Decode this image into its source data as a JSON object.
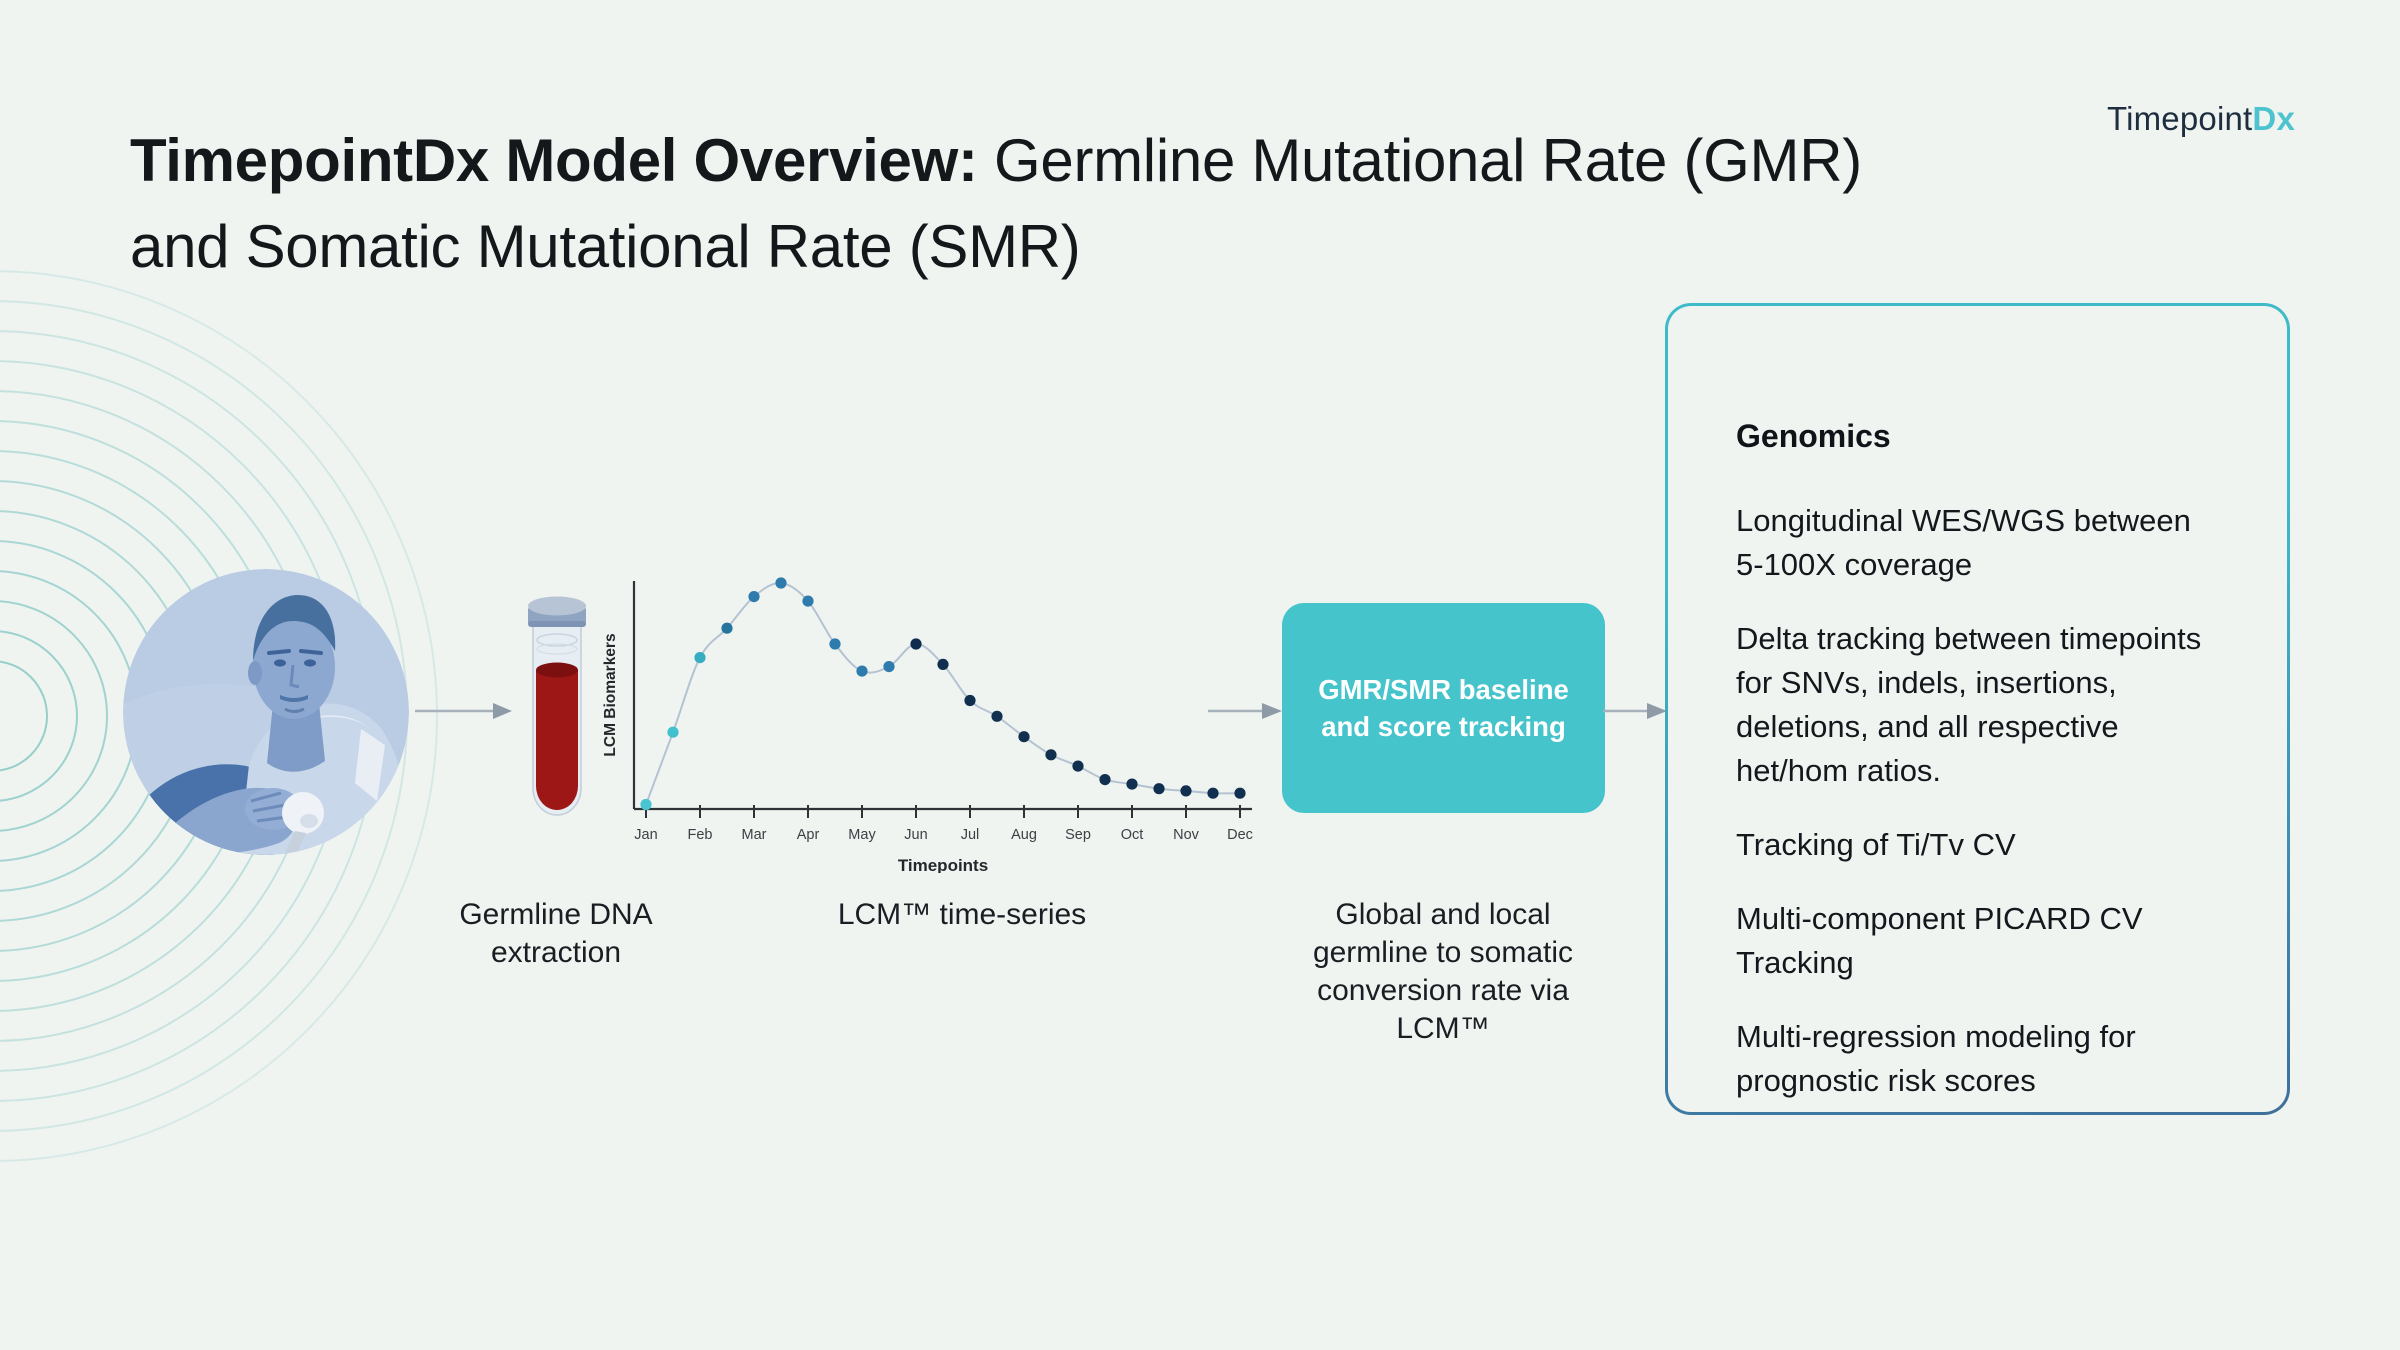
{
  "slide": {
    "background": "#eff4f1"
  },
  "logo": {
    "prefix": "Timepoint",
    "suffix": "Dx",
    "prefix_color": "#1e2e3e",
    "suffix_color": "#4cc3ce"
  },
  "title": {
    "bold": "TimepointDx Model Overview:",
    "rest": " Germline Mutational Rate (GMR) and Somatic Mutational Rate (SMR)",
    "color": "#15181b"
  },
  "captions": {
    "extraction": {
      "text": "Germline DNA extraction",
      "lines": [
        "Germline DNA",
        "extraction"
      ]
    },
    "timeseries": {
      "text": "LCM™ time-series",
      "lines": [
        "LCM™ time-series"
      ]
    },
    "conversion": {
      "text": "Global and local germline to somatic conversion rate via LCM™",
      "lines": [
        "Global and local",
        "germline to somatic",
        "conversion rate via",
        "LCM™"
      ]
    }
  },
  "process_box": {
    "line1": "GMR/SMR baseline",
    "line2": "and score tracking",
    "bg": "#45c4cc",
    "text_color": "#ffffff"
  },
  "genomics_panel": {
    "heading": "Genomics",
    "items": [
      {
        "text": "Longitudinal WES/WGS between 5-100X coverage",
        "lines": [
          "Longitudinal WES/WGS between",
          "5-100X coverage"
        ]
      },
      {
        "text": "Delta tracking between timepoints for SNVs, indels, insertions, deletions, and all respective het/hom ratios.",
        "lines": [
          "Delta tracking between timepoints",
          "for SNVs, indels, insertions,",
          "deletions, and all respective",
          "het/hom ratios."
        ]
      },
      {
        "text": "Tracking of Ti/Tv CV",
        "lines": [
          "Tracking of Ti/Tv CV"
        ]
      },
      {
        "text": "Multi-component PICARD CV Tracking",
        "lines": [
          "Multi-component PICARD CV",
          "Tracking"
        ]
      },
      {
        "text": "Multi-regression modeling for prognostic risk scores",
        "lines": [
          "Multi-regression modeling for",
          "prognostic risk scores"
        ]
      }
    ],
    "border_top": "#3fbac8",
    "border_bottom": "#3e6f9b"
  },
  "chart_data": {
    "type": "line",
    "title": "",
    "xlabel": "Timepoints",
    "ylabel": "LCM Biomarkers",
    "x_tick_labels": [
      "Jan",
      "Feb",
      "Mar",
      "Apr",
      "May",
      "Jun",
      "Jul",
      "Aug",
      "Sep",
      "Oct",
      "Nov",
      "Dec"
    ],
    "x": [
      0,
      0.5,
      1,
      1.5,
      2,
      2.5,
      3,
      3.5,
      4,
      4.5,
      5,
      5.5,
      6,
      6.5,
      7,
      7.5,
      8,
      8.5,
      9,
      9.5,
      10,
      10.5,
      11
    ],
    "values": [
      2,
      34,
      67,
      80,
      94,
      100,
      92,
      73,
      61,
      63,
      73,
      64,
      48,
      41,
      32,
      24,
      19,
      13,
      11,
      9,
      8,
      7,
      7
    ],
    "ylim": [
      0,
      100
    ],
    "grid": false,
    "legend": null,
    "line_color": "#b5c2d2",
    "axis_color": "#2e3338",
    "tick_label_color": "#3c4146",
    "point_colors": [
      "#49c4d1",
      "#43c0cd",
      "#36adc0",
      "#27759c",
      "#2e7cad",
      "#2e7cad",
      "#2e7cad",
      "#2e7cad",
      "#2e7cad",
      "#2e7cad",
      "#0f2c4e",
      "#11304f",
      "#11304f",
      "#11304f",
      "#11304f",
      "#11304f",
      "#11304f",
      "#11304f",
      "#11304f",
      "#11304f",
      "#11304f",
      "#11304f",
      "#11304f"
    ]
  },
  "arrows": {
    "shaft_color": "#a7b1bb",
    "head_color": "#8e9aa5"
  },
  "decor": {
    "ring_color": "#3fa9a4"
  }
}
